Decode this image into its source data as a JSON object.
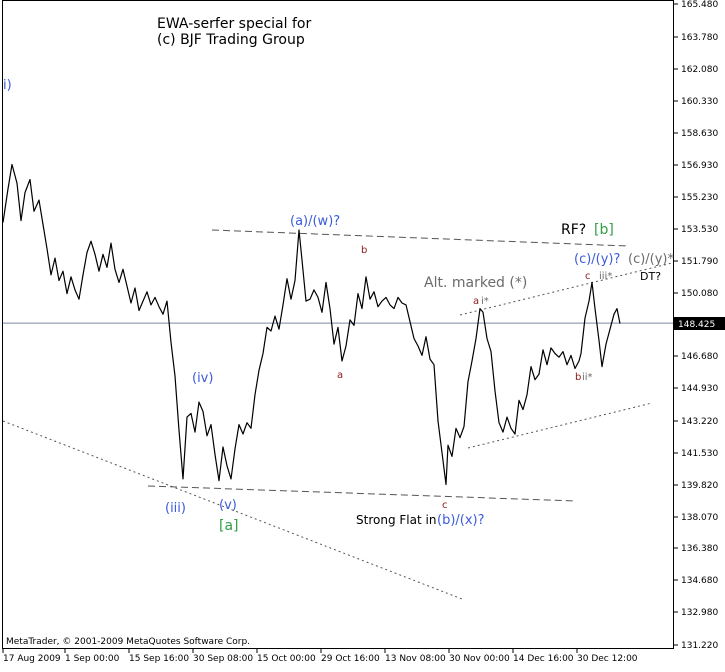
{
  "colors": {
    "background": "#ffffff",
    "price": "#000000",
    "wave_blue": "#3b5bdb",
    "wave_red": "#8b1a1a",
    "wave_green": "#2f9e44",
    "trendline": "#555555",
    "annotation_gray": "#6b6b6b",
    "current_line": "#7a8aa0"
  },
  "header": {
    "title_line1": "EWA-serfer special for",
    "title_line2": "(c) BJF Trading Group"
  },
  "footer": {
    "copyright": "MetaTrader, © 2001-2009 MetaQuotes Software Corp."
  },
  "chart_data": {
    "type": "line",
    "x_ticks": [
      "17 Aug 2009",
      "1 Sep 00:00",
      "15 Sep 16:00",
      "30 Sep 08:00",
      "15 Oct 00:00",
      "29 Oct 16:00",
      "13 Nov 08:00",
      "30 Nov 00:00",
      "14 Dec 16:00",
      "30 Dec 12:00"
    ],
    "y_ticks": [
      "165.480",
      "163.780",
      "162.080",
      "160.330",
      "158.630",
      "156.930",
      "155.230",
      "153.530",
      "151.790",
      "150.080",
      "148.425",
      "146.680",
      "144.930",
      "143.220",
      "141.530",
      "139.820",
      "138.070",
      "136.380",
      "134.680",
      "132.980",
      "131.220"
    ],
    "ylim": [
      131.22,
      165.48
    ],
    "current_price": "148.425",
    "series": [
      {
        "values": [
          [
            0,
            153.8
          ],
          [
            5,
            155.6
          ],
          [
            9,
            156.9
          ],
          [
            14,
            155.9
          ],
          [
            18,
            153.9
          ],
          [
            22,
            155.4
          ],
          [
            27,
            156.1
          ],
          [
            31,
            154.4
          ],
          [
            36,
            155.0
          ],
          [
            40,
            153.7
          ],
          [
            44,
            152.4
          ],
          [
            48,
            151.0
          ],
          [
            52,
            151.9
          ],
          [
            56,
            150.7
          ],
          [
            60,
            151.2
          ],
          [
            64,
            150.0
          ],
          [
            68,
            150.9
          ],
          [
            72,
            150.2
          ],
          [
            76,
            149.7
          ],
          [
            80,
            151.0
          ],
          [
            84,
            152.2
          ],
          [
            88,
            152.8
          ],
          [
            92,
            152.1
          ],
          [
            96,
            151.2
          ],
          [
            100,
            152.1
          ],
          [
            104,
            151.4
          ],
          [
            108,
            152.7
          ],
          [
            112,
            151.3
          ],
          [
            116,
            150.6
          ],
          [
            120,
            151.3
          ],
          [
            124,
            150.4
          ],
          [
            128,
            149.5
          ],
          [
            132,
            150.3
          ],
          [
            136,
            149.1
          ],
          [
            140,
            149.6
          ],
          [
            144,
            150.1
          ],
          [
            148,
            149.4
          ],
          [
            152,
            149.8
          ],
          [
            156,
            149.3
          ],
          [
            160,
            148.9
          ],
          [
            164,
            149.6
          ],
          [
            168,
            147.4
          ],
          [
            172,
            145.6
          ],
          [
            176,
            142.7
          ],
          [
            180,
            140.1
          ],
          [
            184,
            143.4
          ],
          [
            188,
            143.6
          ],
          [
            192,
            142.6
          ],
          [
            196,
            144.2
          ],
          [
            200,
            143.7
          ],
          [
            204,
            142.4
          ],
          [
            208,
            143.0
          ],
          [
            212,
            141.4
          ],
          [
            216,
            140.0
          ],
          [
            220,
            141.8
          ],
          [
            224,
            140.8
          ],
          [
            228,
            140.1
          ],
          [
            232,
            141.7
          ],
          [
            236,
            143.0
          ],
          [
            240,
            142.5
          ],
          [
            244,
            143.1
          ],
          [
            248,
            142.8
          ],
          [
            252,
            144.6
          ],
          [
            256,
            145.9
          ],
          [
            260,
            146.8
          ],
          [
            264,
            148.2
          ],
          [
            268,
            148.0
          ],
          [
            272,
            148.8
          ],
          [
            276,
            148.1
          ],
          [
            280,
            149.4
          ],
          [
            284,
            150.8
          ],
          [
            288,
            149.7
          ],
          [
            292,
            150.7
          ],
          [
            296,
            153.4
          ],
          [
            299,
            151.8
          ],
          [
            303,
            149.6
          ],
          [
            307,
            149.7
          ],
          [
            311,
            150.2
          ],
          [
            315,
            149.8
          ],
          [
            319,
            149.0
          ],
          [
            323,
            150.6
          ],
          [
            327,
            149.2
          ],
          [
            331,
            147.3
          ],
          [
            335,
            148.2
          ],
          [
            339,
            146.4
          ],
          [
            343,
            147.2
          ],
          [
            347,
            148.6
          ],
          [
            351,
            148.3
          ],
          [
            355,
            150.0
          ],
          [
            359,
            149.2
          ],
          [
            363,
            150.9
          ],
          [
            367,
            149.7
          ],
          [
            371,
            150.1
          ],
          [
            375,
            149.3
          ],
          [
            379,
            149.6
          ],
          [
            383,
            149.8
          ],
          [
            387,
            149.4
          ],
          [
            391,
            149.2
          ],
          [
            395,
            149.8
          ],
          [
            399,
            149.5
          ],
          [
            403,
            149.4
          ],
          [
            407,
            148.5
          ],
          [
            411,
            147.6
          ],
          [
            415,
            147.2
          ],
          [
            419,
            146.7
          ],
          [
            423,
            147.7
          ],
          [
            427,
            146.5
          ],
          [
            431,
            146.2
          ],
          [
            435,
            143.2
          ],
          [
            439,
            141.5
          ],
          [
            443,
            139.8
          ],
          [
            445,
            141.9
          ],
          [
            449,
            141.3
          ],
          [
            453,
            142.8
          ],
          [
            457,
            142.3
          ],
          [
            461,
            142.9
          ],
          [
            465,
            145.3
          ],
          [
            469,
            146.4
          ],
          [
            473,
            147.6
          ],
          [
            477,
            149.2
          ],
          [
            480,
            149.0
          ],
          [
            484,
            147.6
          ],
          [
            488,
            146.9
          ],
          [
            492,
            144.8
          ],
          [
            496,
            143.1
          ],
          [
            500,
            142.6
          ],
          [
            504,
            143.4
          ],
          [
            508,
            142.8
          ],
          [
            512,
            142.5
          ],
          [
            516,
            144.3
          ],
          [
            520,
            143.8
          ],
          [
            524,
            144.6
          ],
          [
            528,
            146.1
          ],
          [
            532,
            145.4
          ],
          [
            536,
            145.7
          ],
          [
            540,
            147.0
          ],
          [
            544,
            146.2
          ],
          [
            548,
            147.1
          ],
          [
            552,
            146.8
          ],
          [
            556,
            146.6
          ],
          [
            560,
            146.9
          ],
          [
            564,
            146.2
          ],
          [
            568,
            146.7
          ],
          [
            572,
            146.0
          ],
          [
            576,
            146.4
          ],
          [
            578,
            146.8
          ],
          [
            582,
            148.7
          ],
          [
            586,
            149.6
          ],
          [
            589,
            150.6
          ],
          [
            592,
            149.2
          ],
          [
            596,
            147.5
          ],
          [
            599,
            146.1
          ],
          [
            603,
            147.3
          ],
          [
            607,
            148.1
          ],
          [
            611,
            148.9
          ],
          [
            614,
            149.2
          ],
          [
            617,
            148.4
          ]
        ]
      }
    ],
    "wave_labels": [
      {
        "text": "i)",
        "price": 162.7,
        "color": "wave_blue"
      },
      {
        "text": "(iv)",
        "price": 145.9,
        "color": "wave_blue"
      },
      {
        "text": "(iii)",
        "price": 139.0,
        "color": "wave_blue"
      },
      {
        "text": "(v)",
        "price": 139.3,
        "color": "wave_blue"
      },
      {
        "text": "[a]",
        "price": 138.2,
        "color": "wave_green"
      },
      {
        "text": "(a)/(w)?",
        "price": 154.0,
        "color": "wave_blue"
      },
      {
        "text": "b",
        "price": 152.5,
        "color": "wave_red"
      },
      {
        "text": "a",
        "price": 147.5,
        "color": "wave_red"
      },
      {
        "text": "Alt. marked (*)",
        "price": 151.4,
        "color": "annotation_gray"
      },
      {
        "text": "a",
        "price": 150.3,
        "color": "wave_red"
      },
      {
        "text": "i*",
        "price": 150.3,
        "color": "annotation_gray"
      },
      {
        "text": "c",
        "price": 139.6,
        "color": "wave_red"
      },
      {
        "text": "Strong Flat in",
        "price": 138.5,
        "color": "price"
      },
      {
        "text": "(b)/(x)?",
        "price": 138.5,
        "color": "wave_blue"
      },
      {
        "text": "RF?",
        "price": 153.4,
        "color": "price"
      },
      {
        "text": "[b]",
        "price": 153.4,
        "color": "wave_green"
      },
      {
        "text": "(c)/(y)?",
        "price": 152.3,
        "color": "wave_blue"
      },
      {
        "text": "(c)/(y)*",
        "price": 152.3,
        "color": "annotation_gray"
      },
      {
        "text": "c",
        "price": 151.5,
        "color": "wave_red"
      },
      {
        "text": "iii*",
        "price": 151.2,
        "color": "annotation_gray"
      },
      {
        "text": "DT?",
        "price": 150.9,
        "color": "price"
      },
      {
        "text": "b",
        "price": 146.3,
        "color": "wave_red"
      },
      {
        "text": "ii*",
        "price": 146.3,
        "color": "annotation_gray"
      }
    ],
    "grid": false
  }
}
